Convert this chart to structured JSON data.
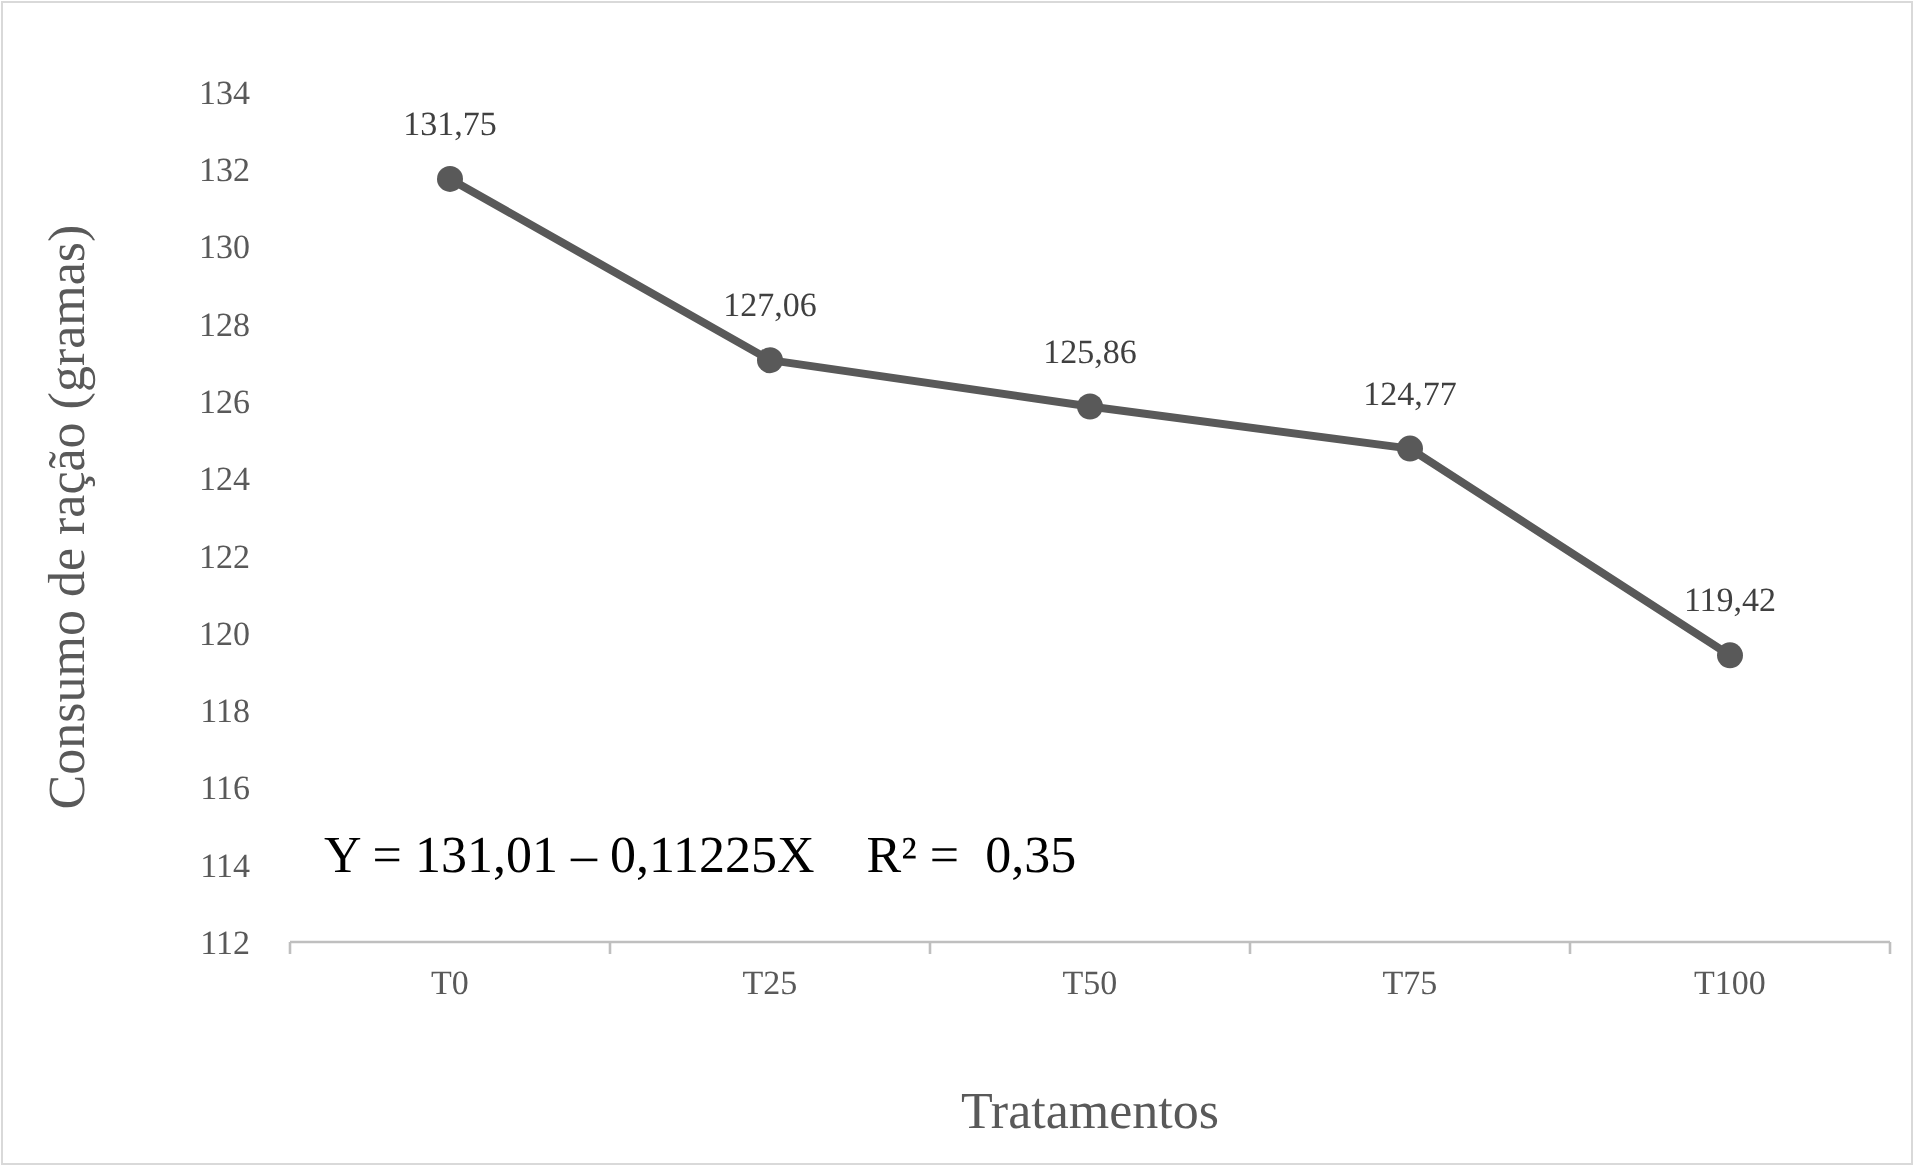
{
  "chart_data": {
    "type": "line",
    "xlabel": "Tratamentos",
    "ylabel": "Consumo de ração (gramas)",
    "categories": [
      "T0",
      "T25",
      "T50",
      "T75",
      "T100"
    ],
    "series": [
      {
        "color": "#595959",
        "values": [
          131.75,
          127.06,
          125.86,
          124.77,
          119.42
        ],
        "value_labels": [
          "131,75",
          "127,06",
          "125,86",
          "124,77",
          "119,42"
        ]
      }
    ],
    "ylim": [
      112,
      134
    ],
    "yticks": [
      112,
      114,
      116,
      118,
      120,
      122,
      124,
      126,
      128,
      130,
      132,
      134
    ],
    "grid": false,
    "marker": "circle",
    "line_style": "solid",
    "annotations": [
      "Y = 131,01 – 0,11225X    R² =  0,35"
    ]
  }
}
